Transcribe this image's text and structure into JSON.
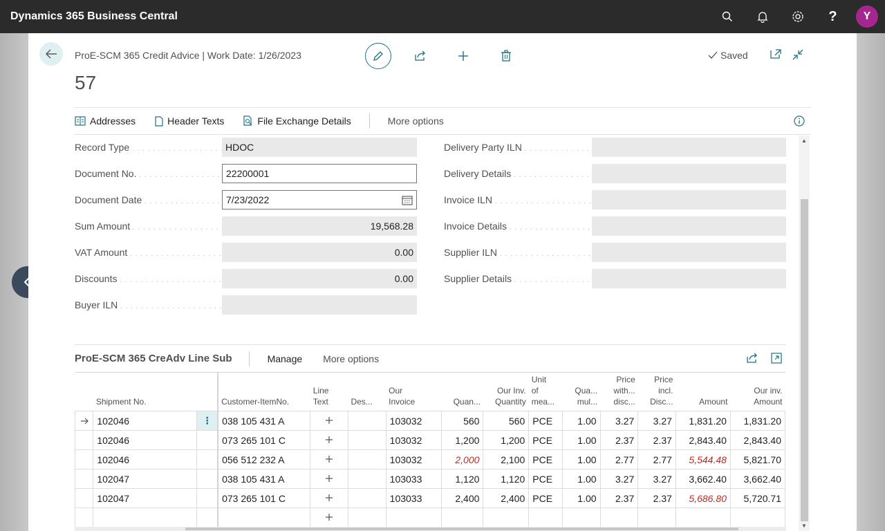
{
  "app": {
    "title": "Dynamics 365 Business Central",
    "avatar_initial": "Y"
  },
  "page": {
    "caption": "ProE-SCM 365 Credit Advice | Work Date: 1/26/2023",
    "record_title": "57",
    "saved_label": "Saved"
  },
  "actionbar": {
    "addresses": "Addresses",
    "header_texts": "Header Texts",
    "file_exchange": "File Exchange Details",
    "more_options": "More options"
  },
  "left_fields": [
    {
      "label": "Record Type",
      "value": "HDOC"
    },
    {
      "label": "Document No.",
      "value": "22200001"
    },
    {
      "label": "Document Date",
      "value": "7/23/2022"
    },
    {
      "label": "Sum Amount",
      "value": "19,568.28"
    },
    {
      "label": "VAT Amount",
      "value": "0.00"
    },
    {
      "label": "Discounts",
      "value": "0.00"
    },
    {
      "label": "Buyer ILN",
      "value": ""
    }
  ],
  "right_fields": [
    {
      "label": "Delivery Party ILN",
      "value": ""
    },
    {
      "label": "Delivery Details",
      "value": ""
    },
    {
      "label": "Invoice ILN",
      "value": ""
    },
    {
      "label": "Invoice Details",
      "value": ""
    },
    {
      "label": "Supplier ILN",
      "value": ""
    },
    {
      "label": "Supplier Details",
      "value": ""
    }
  ],
  "subpage": {
    "title": "ProE-SCM 365 CreAdv Line Sub",
    "manage": "Manage",
    "more_options": "More options",
    "columns": {
      "shipment": "Shipment No.",
      "customer_item": "Customer-ItemNo.",
      "line_text_1": "Line",
      "line_text_2": "Text",
      "des": "Des...",
      "our_invoice_1": "Our",
      "our_invoice_2": "Invoice",
      "quan": "Quan...",
      "our_inv_qty_1": "Our Inv.",
      "our_inv_qty_2": "Quantity",
      "uom_1": "Unit",
      "uom_2": "of",
      "uom_3": "mea...",
      "qua_mul_1": "Qua...",
      "qua_mul_2": "mul...",
      "price_with_1": "Price",
      "price_with_2": "with...",
      "price_with_3": "disc...",
      "price_incl_1": "Price",
      "price_incl_2": "incl.",
      "price_incl_3": "Disc...",
      "amount": "Amount",
      "our_inv_amount_1": "Our inv.",
      "our_inv_amount_2": "Amount"
    },
    "rows": [
      {
        "shipment": "102046",
        "item": "038 105 431 A",
        "invoice": "103032",
        "quan": "560",
        "our_qty": "560",
        "uom": "PCE",
        "qua_mul": "1.00",
        "price_with": "3.27",
        "price_incl": "3.27",
        "amount": "1,831.20",
        "our_amount": "1,831.20"
      },
      {
        "shipment": "102046",
        "item": "073 265 101 C",
        "invoice": "103032",
        "quan": "1,200",
        "our_qty": "1,200",
        "uom": "PCE",
        "qua_mul": "1.00",
        "price_with": "2.37",
        "price_incl": "2.37",
        "amount": "2,843.40",
        "our_amount": "2,843.40"
      },
      {
        "shipment": "102046",
        "item": "056 512 232 A",
        "invoice": "103032",
        "quan": "2,000",
        "our_qty": "2,100",
        "uom": "PCE",
        "qua_mul": "1.00",
        "price_with": "2.77",
        "price_incl": "2.77",
        "amount": "5,544.48",
        "our_amount": "5,821.70"
      },
      {
        "shipment": "102047",
        "item": "038 105 431 A",
        "invoice": "103033",
        "quan": "1,120",
        "our_qty": "1,120",
        "uom": "PCE",
        "qua_mul": "1.00",
        "price_with": "3.27",
        "price_incl": "3.27",
        "amount": "3,662.40",
        "our_amount": "3,662.40"
      },
      {
        "shipment": "102047",
        "item": "073 265 101 C",
        "invoice": "103033",
        "quan": "2,400",
        "our_qty": "2,400",
        "uom": "PCE",
        "qua_mul": "1.00",
        "price_with": "2.37",
        "price_incl": "2.37",
        "amount": "5,686.80",
        "our_amount": "5,720.71"
      }
    ]
  },
  "colors": {
    "accent": "#1f6f84",
    "negative": "#c2291e",
    "avatar": "#a4268e"
  }
}
